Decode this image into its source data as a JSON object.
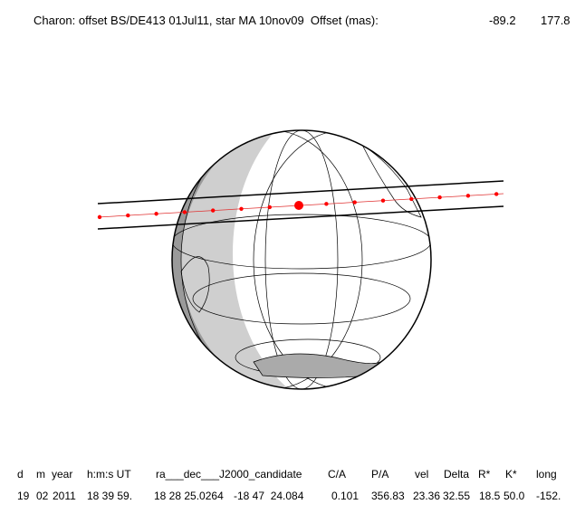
{
  "header": {
    "title": "Charon: offset BS/DE413 01Jul11, star MA 10nov09  Offset (mas):",
    "offset": [
      -89.2,
      177.8
    ]
  },
  "table": {
    "headers": [
      "d",
      "m",
      "year",
      "h:m:s UT",
      "ra___dec___J2000_candidate",
      "C/A",
      "P/A",
      "vel",
      "Delta",
      "R*",
      "K*",
      "long"
    ],
    "values": [
      "19",
      "02",
      "2011",
      "18 39 59.",
      "18 28 25.0264",
      "-18 47  24.084",
      "0.101",
      "356.83",
      "23.36",
      "32.55",
      "18.5",
      "50.0",
      "-152."
    ]
  }
}
